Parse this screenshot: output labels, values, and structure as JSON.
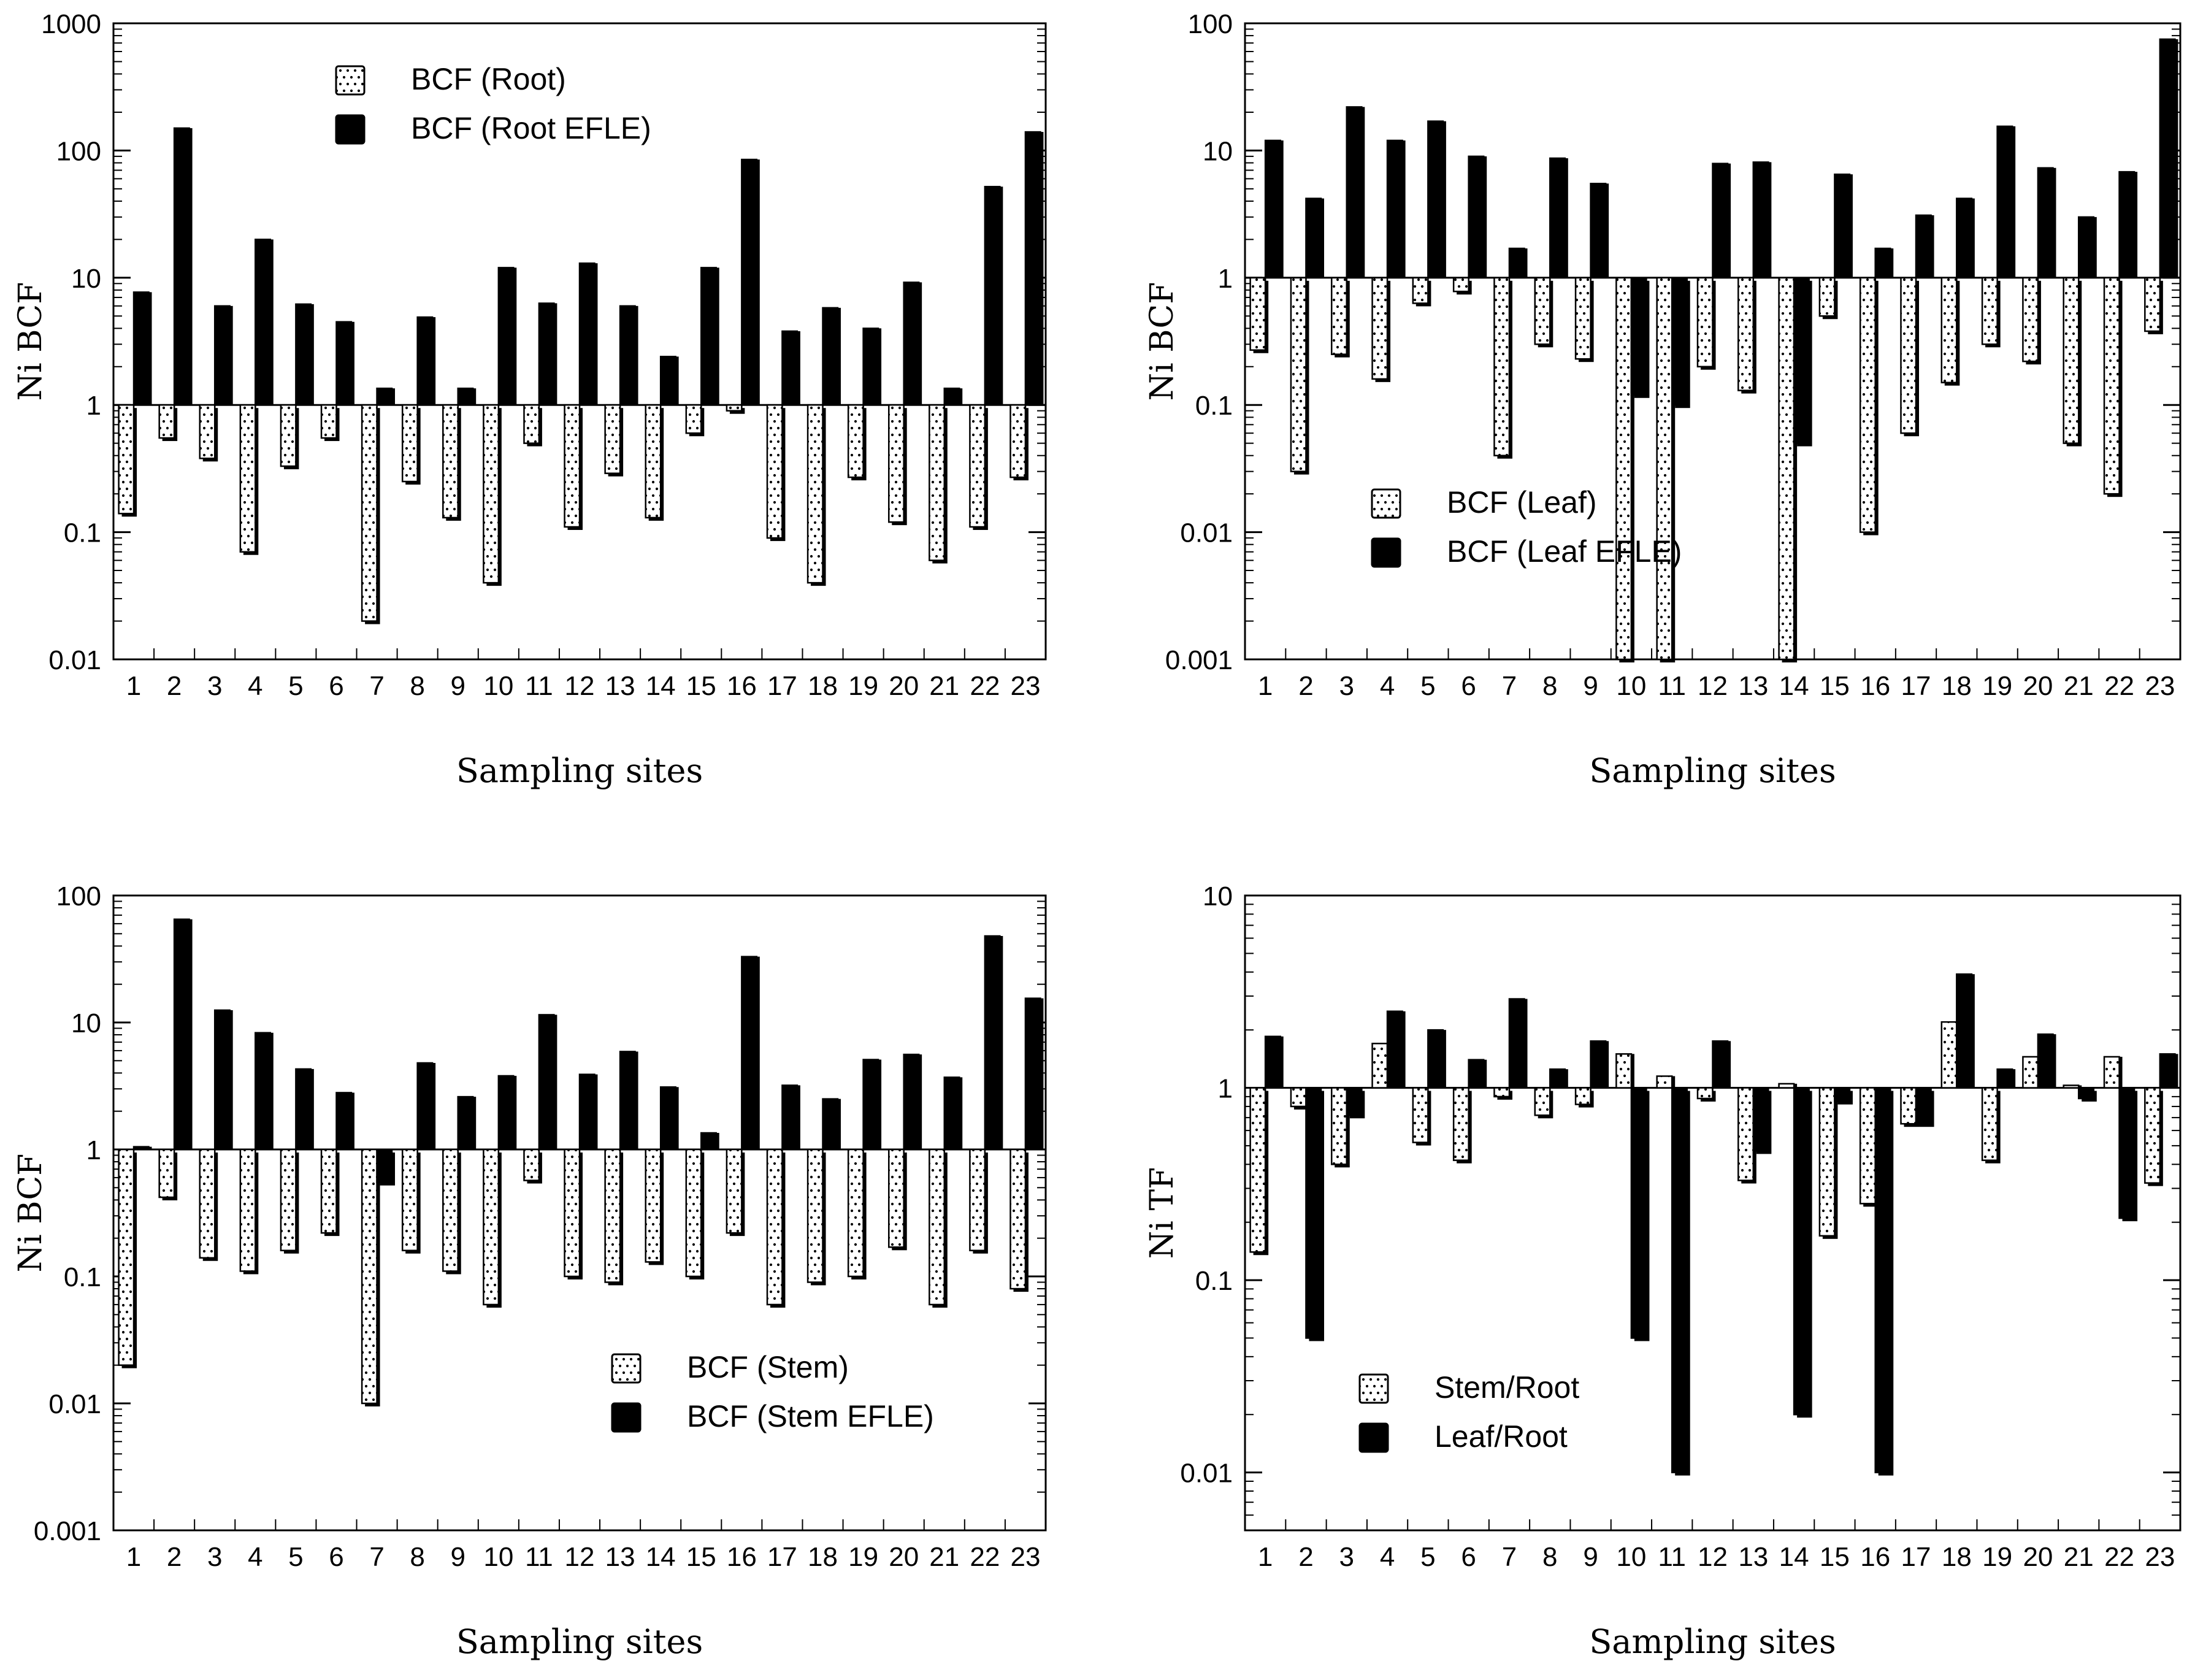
{
  "chart_data": [
    {
      "type": "bar",
      "scale": "log",
      "ylabel": "Ni BCF",
      "xlabel": "Sampling sites",
      "ylim": [
        0.01,
        1000
      ],
      "yticks": [
        "0.01",
        "0.1",
        "1",
        "10",
        "100",
        "1000"
      ],
      "legend_position": "top-center",
      "categories": [
        "1",
        "2",
        "3",
        "4",
        "5",
        "6",
        "7",
        "8",
        "9",
        "10",
        "11",
        "12",
        "13",
        "14",
        "15",
        "16",
        "17",
        "18",
        "19",
        "20",
        "21",
        "22",
        "23"
      ],
      "series": [
        {
          "name": "BCF (Root)",
          "fill": "dotted",
          "values": [
            0.14,
            0.55,
            0.38,
            0.07,
            0.33,
            0.55,
            0.02,
            0.25,
            0.13,
            0.04,
            0.5,
            0.11,
            0.29,
            0.13,
            0.6,
            0.9,
            0.09,
            0.04,
            0.27,
            0.12,
            0.06,
            0.11,
            0.27
          ]
        },
        {
          "name": "BCF (Root EFLE)",
          "fill": "solid",
          "values": [
            7.7,
            150,
            6,
            20,
            6.2,
            4.5,
            1.35,
            4.9,
            1.35,
            12,
            6.3,
            13,
            6,
            2.4,
            12,
            85,
            3.8,
            5.8,
            4,
            9.2,
            1.35,
            52,
            140
          ]
        }
      ]
    },
    {
      "type": "bar",
      "scale": "log",
      "ylabel": "Ni BCF",
      "xlabel": "Sampling sites",
      "ylim": [
        0.001,
        100
      ],
      "yticks": [
        "0.001",
        "0.01",
        "0.1",
        "1",
        "10",
        "100"
      ],
      "legend_position": "lower-left",
      "categories": [
        "1",
        "2",
        "3",
        "4",
        "5",
        "6",
        "7",
        "8",
        "9",
        "10",
        "11",
        "12",
        "13",
        "14",
        "15",
        "16",
        "17",
        "18",
        "19",
        "20",
        "21",
        "22",
        "23"
      ],
      "series": [
        {
          "name": "BCF (Leaf)",
          "fill": "dotted",
          "values": [
            0.27,
            0.03,
            0.25,
            0.16,
            0.63,
            0.78,
            0.04,
            0.3,
            0.23,
            0.001,
            0.001,
            0.2,
            0.13,
            0.001,
            0.5,
            0.01,
            0.06,
            0.15,
            0.3,
            0.22,
            0.05,
            0.02,
            0.38
          ]
        },
        {
          "name": "BCF (Leaf EFLE)",
          "fill": "solid",
          "values": [
            12,
            4.2,
            22,
            12,
            17,
            9,
            1.7,
            8.7,
            5.5,
            0.12,
            0.1,
            7.9,
            8.1,
            0.05,
            6.5,
            1.7,
            3.1,
            4.2,
            15.5,
            7.3,
            3,
            6.8,
            75
          ]
        }
      ]
    },
    {
      "type": "bar",
      "scale": "log",
      "ylabel": "Ni BCF",
      "xlabel": "Sampling sites",
      "ylim": [
        0.001,
        100
      ],
      "yticks": [
        "0.001",
        "0.01",
        "0.1",
        "1",
        "10",
        "100"
      ],
      "legend_position": "lower-right",
      "categories": [
        "1",
        "2",
        "3",
        "4",
        "5",
        "6",
        "7",
        "8",
        "9",
        "10",
        "11",
        "12",
        "13",
        "14",
        "15",
        "16",
        "17",
        "18",
        "19",
        "20",
        "21",
        "22",
        "23"
      ],
      "series": [
        {
          "name": "BCF (Stem)",
          "fill": "dotted",
          "values": [
            0.02,
            0.42,
            0.14,
            0.11,
            0.16,
            0.22,
            0.01,
            0.16,
            0.11,
            0.06,
            0.57,
            0.1,
            0.09,
            0.13,
            0.1,
            0.22,
            0.06,
            0.09,
            0.1,
            0.17,
            0.06,
            0.16,
            0.08
          ]
        },
        {
          "name": "BCF (Stem EFLE)",
          "fill": "solid",
          "values": [
            1.05,
            65,
            12.5,
            8.3,
            4.3,
            2.8,
            0.55,
            4.8,
            2.6,
            3.8,
            11.5,
            3.9,
            5.9,
            3.1,
            1.35,
            33,
            3.2,
            2.5,
            5.1,
            5.6,
            3.7,
            48,
            15.5
          ]
        }
      ]
    },
    {
      "type": "bar",
      "scale": "log",
      "ylabel": "Ni TF",
      "xlabel": "Sampling sites",
      "ylim": [
        0.005,
        10
      ],
      "yticks": [
        "0.01",
        "0.1",
        "1",
        "10"
      ],
      "legend_position": "lower-left",
      "categories": [
        "1",
        "2",
        "3",
        "4",
        "5",
        "6",
        "7",
        "8",
        "9",
        "10",
        "11",
        "12",
        "13",
        "14",
        "15",
        "16",
        "17",
        "18",
        "19",
        "20",
        "21",
        "22",
        "23"
      ],
      "series": [
        {
          "name": "Stem/Root",
          "fill": "dotted",
          "values": [
            0.14,
            0.8,
            0.4,
            1.7,
            0.52,
            0.42,
            0.9,
            0.72,
            0.82,
            1.5,
            1.15,
            0.88,
            0.33,
            1.05,
            0.17,
            0.25,
            0.65,
            2.2,
            0.42,
            1.45,
            1.03,
            1.45,
            0.32
          ]
        },
        {
          "name": "Leaf/Root",
          "fill": "solid",
          "values": [
            1.85,
            0.05,
            0.72,
            2.5,
            2,
            1.4,
            2.9,
            1.25,
            1.75,
            0.05,
            0.01,
            1.75,
            0.47,
            0.02,
            0.85,
            0.01,
            0.65,
            3.9,
            1.25,
            1.9,
            0.88,
            0.21,
            1.5
          ]
        }
      ]
    }
  ]
}
